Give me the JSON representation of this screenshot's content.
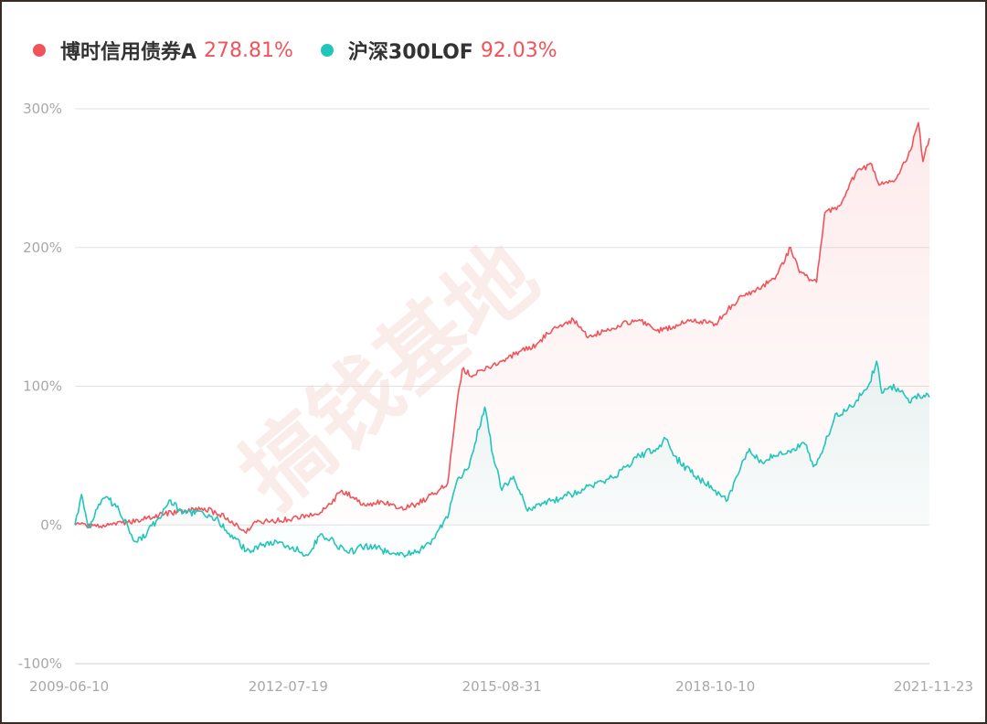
{
  "watermark": "搞钱基地",
  "colors": {
    "series_a": "#f0545a",
    "series_b": "#22c5b9",
    "grid": "#e2e2e2",
    "tick": "#a8a8a8"
  },
  "legend": {
    "items": [
      {
        "name": "博时信用债券A",
        "value": "278.81%",
        "color": "#f0545a"
      },
      {
        "name": "沪深300LOF",
        "value": "92.03%",
        "color": "#22c5b9"
      }
    ]
  },
  "chart_data": {
    "type": "line",
    "title": "",
    "xlabel": "",
    "ylabel": "",
    "grid": "horizontal",
    "legend_position": "top-left",
    "x_ticks": [
      "2009-06-10",
      "2012-07-19",
      "2015-08-31",
      "2018-10-10",
      "2021-11-23"
    ],
    "y_ticks": [
      {
        "value": -100,
        "label": "-100%"
      },
      {
        "value": 0,
        "label": "0%"
      },
      {
        "value": 100,
        "label": "100%"
      },
      {
        "value": 200,
        "label": "200%"
      },
      {
        "value": 300,
        "label": "300%"
      }
    ],
    "xlim": [
      "2009-06-10",
      "2021-11-23"
    ],
    "ylim": [
      -100,
      300
    ],
    "series": [
      {
        "name": "博时信用债券A",
        "color": "#f0545a",
        "area": true,
        "points": [
          [
            "2009-06-10",
            0
          ],
          [
            "2009-10-01",
            -1
          ],
          [
            "2010-01-15",
            0
          ],
          [
            "2010-06-01",
            4
          ],
          [
            "2010-10-01",
            8
          ],
          [
            "2011-01-15",
            10
          ],
          [
            "2011-05-01",
            12
          ],
          [
            "2011-09-01",
            5
          ],
          [
            "2011-12-01",
            -5
          ],
          [
            "2012-02-01",
            2
          ],
          [
            "2012-07-19",
            4
          ],
          [
            "2012-12-01",
            7
          ],
          [
            "2013-03-01",
            15
          ],
          [
            "2013-05-01",
            25
          ],
          [
            "2013-07-01",
            20
          ],
          [
            "2013-09-01",
            14
          ],
          [
            "2013-12-01",
            17
          ],
          [
            "2014-03-01",
            12
          ],
          [
            "2014-06-01",
            15
          ],
          [
            "2014-09-01",
            22
          ],
          [
            "2014-11-15",
            30
          ],
          [
            "2015-01-01",
            85
          ],
          [
            "2015-02-01",
            112
          ],
          [
            "2015-04-01",
            108
          ],
          [
            "2015-08-31",
            118
          ],
          [
            "2015-12-01",
            125
          ],
          [
            "2016-03-01",
            130
          ],
          [
            "2016-06-01",
            142
          ],
          [
            "2016-09-15",
            148
          ],
          [
            "2016-12-01",
            135
          ],
          [
            "2017-03-01",
            140
          ],
          [
            "2017-06-01",
            145
          ],
          [
            "2017-09-01",
            148
          ],
          [
            "2017-12-01",
            140
          ],
          [
            "2018-03-01",
            143
          ],
          [
            "2018-06-01",
            148
          ],
          [
            "2018-10-10",
            145
          ],
          [
            "2018-12-15",
            155
          ],
          [
            "2019-03-01",
            165
          ],
          [
            "2019-06-01",
            170
          ],
          [
            "2019-09-01",
            180
          ],
          [
            "2019-11-15",
            200
          ],
          [
            "2020-01-01",
            182
          ],
          [
            "2020-04-01",
            175
          ],
          [
            "2020-05-15",
            225
          ],
          [
            "2020-08-01",
            230
          ],
          [
            "2020-11-01",
            255
          ],
          [
            "2021-01-20",
            260
          ],
          [
            "2021-03-01",
            245
          ],
          [
            "2021-06-01",
            250
          ],
          [
            "2021-08-15",
            270
          ],
          [
            "2021-09-25",
            290
          ],
          [
            "2021-10-20",
            262
          ],
          [
            "2021-11-23",
            278.81
          ]
        ]
      },
      {
        "name": "沪深300LOF",
        "color": "#22c5b9",
        "area": true,
        "points": [
          [
            "2009-06-10",
            0
          ],
          [
            "2009-07-15",
            22
          ],
          [
            "2009-08-20",
            -2
          ],
          [
            "2009-10-15",
            15
          ],
          [
            "2009-12-01",
            20
          ],
          [
            "2010-02-01",
            10
          ],
          [
            "2010-05-01",
            -12
          ],
          [
            "2010-07-01",
            -5
          ],
          [
            "2010-09-01",
            5
          ],
          [
            "2010-11-01",
            18
          ],
          [
            "2011-01-01",
            8
          ],
          [
            "2011-04-01",
            10
          ],
          [
            "2011-07-01",
            5
          ],
          [
            "2011-10-01",
            -10
          ],
          [
            "2012-01-01",
            -20
          ],
          [
            "2012-04-01",
            -12
          ],
          [
            "2012-07-19",
            -15
          ],
          [
            "2012-11-01",
            -22
          ],
          [
            "2013-01-01",
            -8
          ],
          [
            "2013-03-01",
            -10
          ],
          [
            "2013-06-01",
            -20
          ],
          [
            "2013-09-01",
            -15
          ],
          [
            "2013-12-01",
            -18
          ],
          [
            "2014-03-01",
            -22
          ],
          [
            "2014-06-01",
            -20
          ],
          [
            "2014-09-01",
            -10
          ],
          [
            "2014-11-15",
            5
          ],
          [
            "2014-12-31",
            30
          ],
          [
            "2015-03-01",
            40
          ],
          [
            "2015-06-01",
            85
          ],
          [
            "2015-07-15",
            50
          ],
          [
            "2015-08-31",
            25
          ],
          [
            "2015-11-01",
            35
          ],
          [
            "2016-01-15",
            10
          ],
          [
            "2016-03-01",
            15
          ],
          [
            "2016-06-01",
            18
          ],
          [
            "2016-09-01",
            22
          ],
          [
            "2016-12-01",
            28
          ],
          [
            "2017-03-01",
            30
          ],
          [
            "2017-06-01",
            40
          ],
          [
            "2017-09-01",
            50
          ],
          [
            "2017-12-01",
            55
          ],
          [
            "2018-01-20",
            62
          ],
          [
            "2018-03-01",
            50
          ],
          [
            "2018-06-01",
            38
          ],
          [
            "2018-10-10",
            25
          ],
          [
            "2018-12-15",
            18
          ],
          [
            "2019-02-01",
            35
          ],
          [
            "2019-04-10",
            55
          ],
          [
            "2019-06-01",
            45
          ],
          [
            "2019-09-01",
            50
          ],
          [
            "2019-12-01",
            55
          ],
          [
            "2020-02-01",
            58
          ],
          [
            "2020-03-15",
            42
          ],
          [
            "2020-05-01",
            52
          ],
          [
            "2020-07-10",
            80
          ],
          [
            "2020-09-01",
            82
          ],
          [
            "2020-11-01",
            90
          ],
          [
            "2021-01-01",
            100
          ],
          [
            "2021-02-15",
            118
          ],
          [
            "2021-03-15",
            95
          ],
          [
            "2021-05-01",
            100
          ],
          [
            "2021-07-01",
            97
          ],
          [
            "2021-08-15",
            88
          ],
          [
            "2021-10-01",
            93
          ],
          [
            "2021-11-23",
            92.03
          ]
        ]
      }
    ]
  }
}
